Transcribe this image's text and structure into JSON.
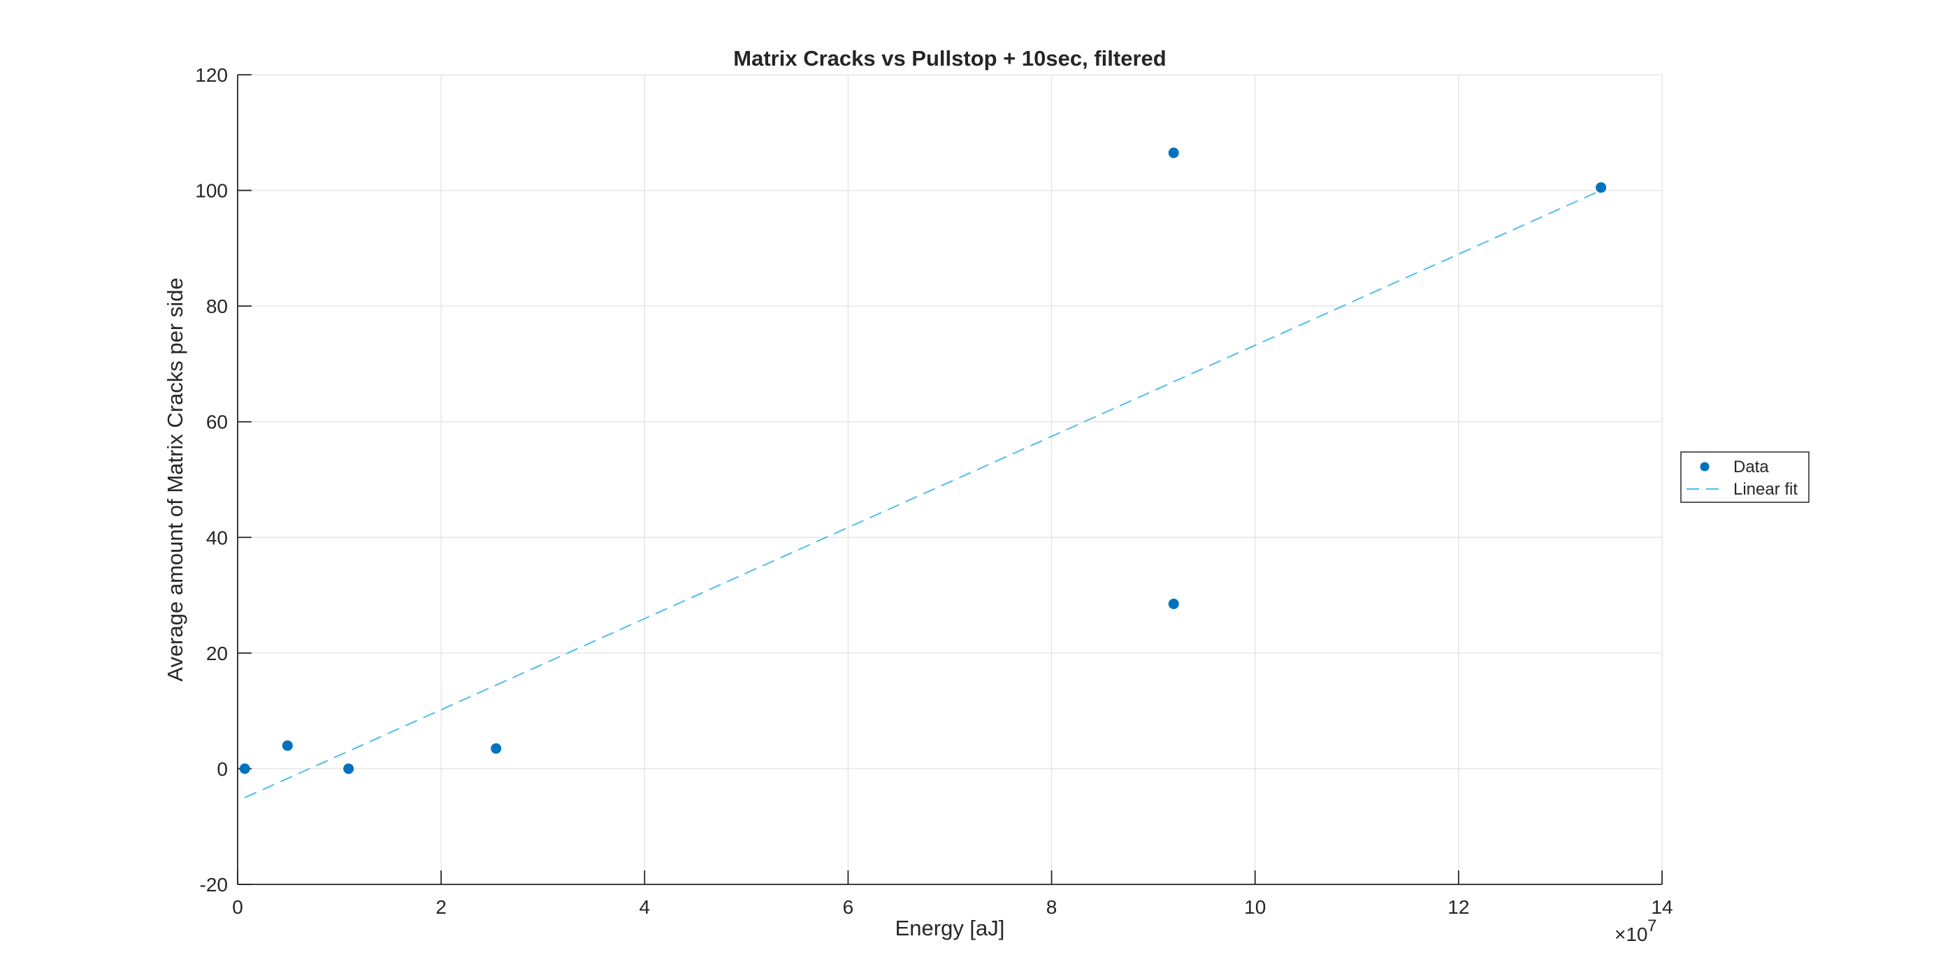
{
  "chart_data": {
    "type": "scatter",
    "title": "Matrix Cracks vs Pullstop + 10sec, filtered",
    "xlabel": "Energy [aJ]",
    "ylabel": "Average amount of Matrix Cracks per side",
    "x_exponent_label": "×10",
    "x_exponent_power": "7",
    "xlim": [
      0,
      14
    ],
    "ylim": [
      -20,
      120
    ],
    "xticks": [
      "0",
      "2",
      "4",
      "6",
      "8",
      "10",
      "12",
      "14"
    ],
    "yticks": [
      "-20",
      "0",
      "20",
      "40",
      "60",
      "80",
      "100",
      "120"
    ],
    "grid": true,
    "legend_position": "east-outside",
    "series": [
      {
        "name": "Data",
        "kind": "markers",
        "color": "#0072BD",
        "points": [
          [
            0.07,
            0
          ],
          [
            0.49,
            4
          ],
          [
            1.09,
            0
          ],
          [
            2.54,
            3.5
          ],
          [
            9.2,
            106.5
          ],
          [
            9.2,
            28.5
          ],
          [
            13.4,
            100.5
          ]
        ]
      },
      {
        "name": "Linear fit",
        "kind": "dashed-line",
        "color": "#4DBEEE",
        "points": [
          [
            0.07,
            -5
          ],
          [
            13.4,
            100
          ]
        ]
      }
    ]
  }
}
